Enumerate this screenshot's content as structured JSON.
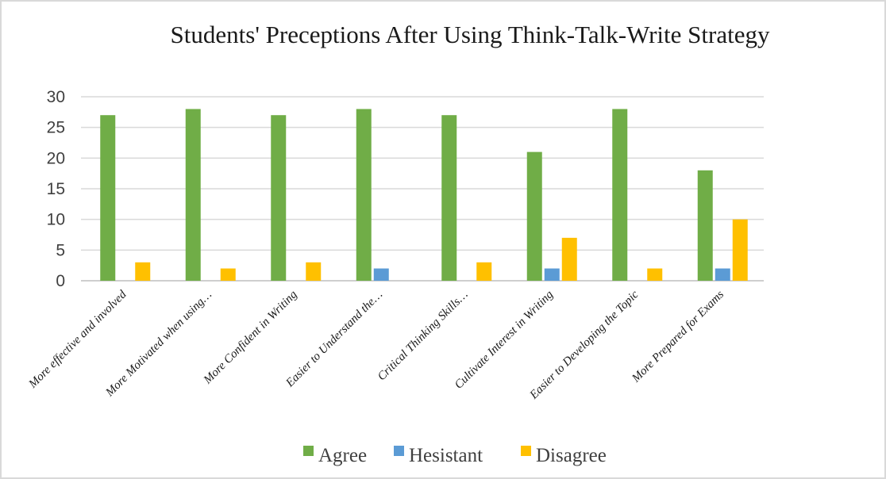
{
  "chart_data": {
    "type": "bar",
    "title": "Students' Preceptions After Using Think-Talk-Write Strategy",
    "xlabel": "",
    "ylabel": "",
    "ylim": [
      0,
      30
    ],
    "yticks": [
      0,
      5,
      10,
      15,
      20,
      25,
      30
    ],
    "grid": true,
    "legend_position": "bottom",
    "categories": [
      "More effective and involved",
      "More Motivated when using…",
      "More Confident in Writing",
      "Easier to Understand the…",
      "Critical Thinking Skills…",
      "Cultivate Interest in Writing",
      "Easier to Developing the Topic",
      "More Prepared for Exams"
    ],
    "series": [
      {
        "name": "Agree",
        "color": "#70ad47",
        "values": [
          27,
          28,
          27,
          28,
          27,
          21,
          28,
          18
        ]
      },
      {
        "name": "Hesistant",
        "color": "#5b9bd5",
        "values": [
          0,
          0,
          0,
          2,
          0,
          2,
          0,
          2
        ]
      },
      {
        "name": "Disagree",
        "color": "#ffc000",
        "values": [
          3,
          2,
          3,
          0,
          3,
          7,
          2,
          10
        ]
      }
    ]
  }
}
